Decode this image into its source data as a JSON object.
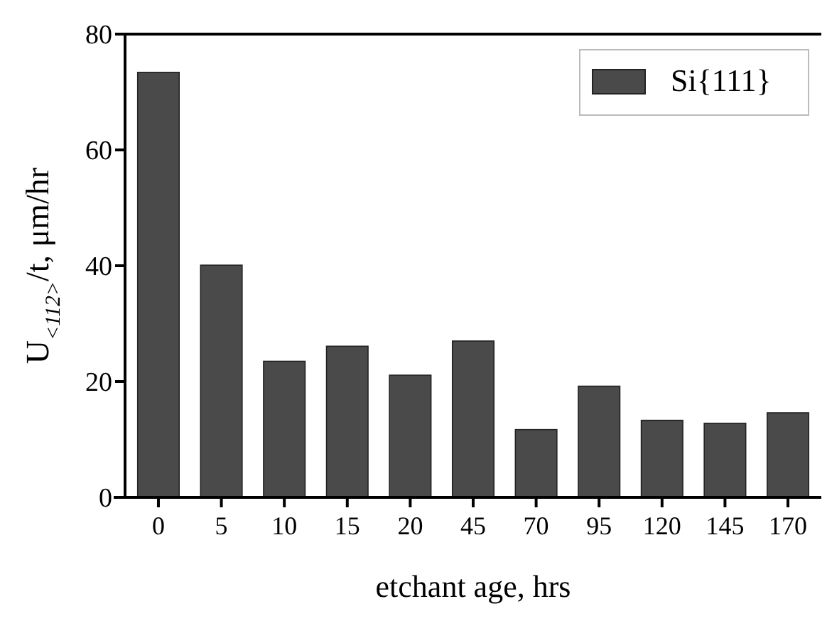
{
  "chart_data": {
    "type": "bar",
    "xlabel": "etchant age, hrs",
    "ylabel": "U$_{<112>}$/t, μm/hr",
    "categories": [
      "0",
      "5",
      "10",
      "15",
      "20",
      "45",
      "70",
      "95",
      "120",
      "145",
      "170"
    ],
    "series": [
      {
        "name": "Si{111}",
        "color": "#4a4a4a",
        "values": [
          73.4,
          40.1,
          23.5,
          26.1,
          21.1,
          27.0,
          11.7,
          19.2,
          13.3,
          12.8,
          14.6
        ]
      }
    ],
    "ylim": [
      0,
      80
    ],
    "yticks": [
      0,
      20,
      40,
      60,
      80
    ],
    "grid": false,
    "legend": "top right"
  }
}
